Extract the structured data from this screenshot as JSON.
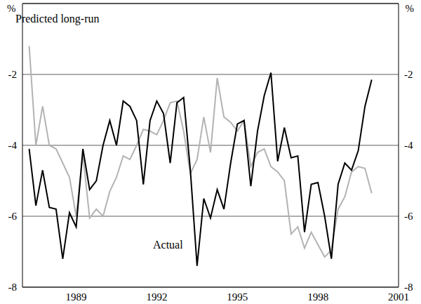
{
  "chart_data": {
    "type": "line",
    "x": [
      1987.25,
      1987.5,
      1987.75,
      1988,
      1988.25,
      1988.5,
      1988.75,
      1989,
      1989.25,
      1989.5,
      1989.75,
      1990,
      1990.25,
      1990.5,
      1990.75,
      1991,
      1991.25,
      1991.5,
      1991.75,
      1992,
      1992.25,
      1992.5,
      1992.75,
      1993,
      1993.25,
      1993.5,
      1993.75,
      1994,
      1994.25,
      1994.5,
      1994.75,
      1995,
      1995.25,
      1995.5,
      1995.75,
      1996,
      1996.25,
      1996.5,
      1996.75,
      1997,
      1997.25,
      1997.5,
      1997.75,
      1998,
      1998.25,
      1998.5,
      1998.75,
      1999,
      1999.25,
      1999.5,
      1999.75,
      2000
    ],
    "series": [
      {
        "name": "Predicted long-run",
        "color": "#b3b3b3",
        "values": [
          -1.2,
          -4.0,
          -2.9,
          -4.0,
          -4.1,
          -4.5,
          -4.9,
          -6.0,
          -4.25,
          -6.05,
          -5.8,
          -6.0,
          -5.3,
          -4.9,
          -4.3,
          -4.4,
          -4.0,
          -3.55,
          -3.6,
          -3.7,
          -3.3,
          -2.8,
          -2.75,
          -3.6,
          -4.8,
          -4.4,
          -3.2,
          -4.2,
          -2.1,
          -3.2,
          -3.35,
          -3.6,
          -3.3,
          -4.6,
          -4.2,
          -4.1,
          -4.6,
          -4.75,
          -5.0,
          -6.5,
          -6.3,
          -6.9,
          -6.45,
          -6.8,
          -7.15,
          -6.95,
          -5.8,
          -5.45,
          -4.75,
          -4.6,
          -4.65,
          -5.35
        ]
      },
      {
        "name": "Actual",
        "color": "#000000",
        "values": [
          -4.1,
          -5.7,
          -4.7,
          -5.75,
          -5.8,
          -7.2,
          -5.9,
          -6.3,
          -4.1,
          -5.25,
          -5.0,
          -4.0,
          -3.3,
          -4.0,
          -2.75,
          -2.9,
          -3.3,
          -5.1,
          -3.3,
          -2.75,
          -3.1,
          -4.5,
          -2.8,
          -2.65,
          -4.7,
          -7.4,
          -5.5,
          -6.05,
          -5.25,
          -5.8,
          -4.5,
          -3.4,
          -3.3,
          -5.15,
          -3.6,
          -2.6,
          -1.95,
          -4.45,
          -3.5,
          -4.35,
          -4.3,
          -6.45,
          -5.1,
          -5.05,
          -6.0,
          -7.2,
          -5.1,
          -4.5,
          -4.7,
          -4.15,
          -2.9,
          -2.15
        ]
      }
    ],
    "xlim": [
      1987,
      2001
    ],
    "xticks": [
      1989,
      1992,
      1995,
      1998,
      2001
    ],
    "ylim": [
      -8,
      0
    ],
    "yticks": [
      -8,
      -6,
      -4,
      -2
    ],
    "ylabel": "%",
    "grid": true
  }
}
